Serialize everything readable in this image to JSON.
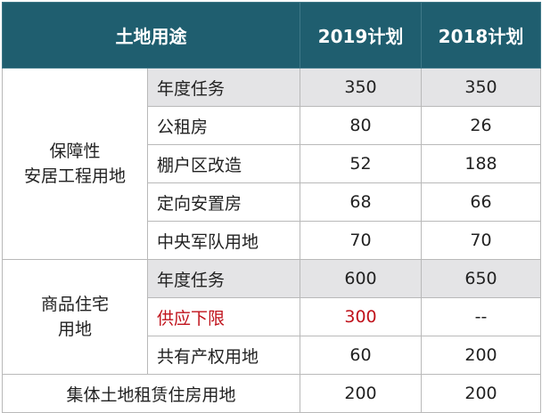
{
  "table": {
    "headers": [
      "土地用途",
      "2019计划",
      "2018计划"
    ],
    "groups": [
      {
        "label_lines": [
          "保障性",
          "安居工程用地"
        ],
        "rows": [
          {
            "item": "年度任务",
            "v2019": "350",
            "v2018": "350",
            "shaded": true,
            "highlight": false
          },
          {
            "item": "公租房",
            "v2019": "80",
            "v2018": "26",
            "shaded": false,
            "highlight": false
          },
          {
            "item": "棚户区改造",
            "v2019": "52",
            "v2018": "188",
            "shaded": false,
            "highlight": false
          },
          {
            "item": "定向安置房",
            "v2019": "68",
            "v2018": "66",
            "shaded": false,
            "highlight": false
          },
          {
            "item": "中央军队用地",
            "v2019": "70",
            "v2018": "70",
            "shaded": false,
            "highlight": false
          }
        ]
      },
      {
        "label_lines": [
          "商品住宅",
          "用地"
        ],
        "rows": [
          {
            "item": "年度任务",
            "v2019": "600",
            "v2018": "650",
            "shaded": true,
            "highlight": false
          },
          {
            "item": "供应下限",
            "v2019": "300",
            "v2018": "--",
            "shaded": false,
            "highlight": true
          },
          {
            "item": "共有产权用地",
            "v2019": "60",
            "v2018": "200",
            "shaded": false,
            "highlight": false
          }
        ]
      }
    ],
    "footer_row": {
      "label": "集体土地租赁住房用地",
      "v2019": "200",
      "v2018": "200"
    },
    "colors": {
      "header_bg": "#1f5e6f",
      "shade_bg": "#e4e4e6",
      "highlight_text": "#c0121b"
    }
  }
}
